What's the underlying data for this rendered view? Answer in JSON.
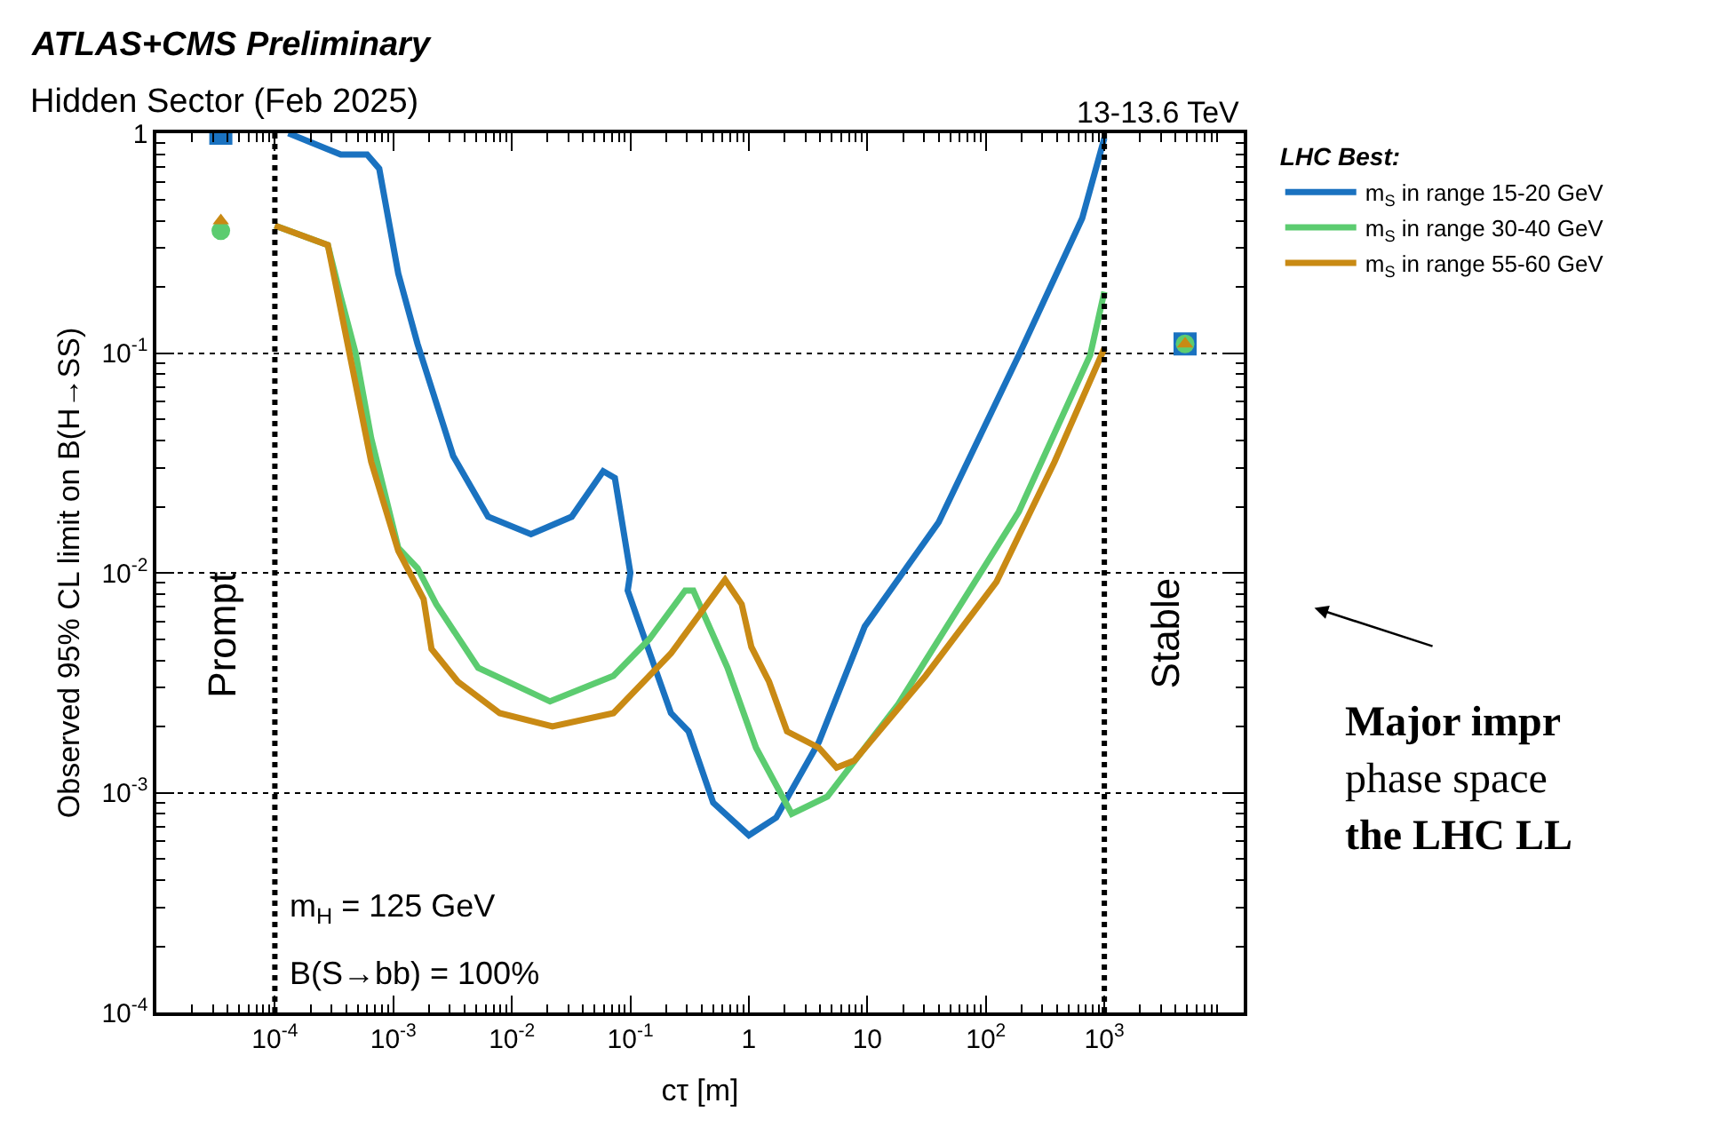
{
  "chart_data": {
    "type": "line",
    "title": "ATLAS+CMS Preliminary",
    "subtitle": "Hidden Sector (Feb 2025)",
    "xlabel": "cτ [m]",
    "ylabel": "Observed 95% CL limit on B(H→SS)",
    "legend_title": "LHC Best:",
    "legend": "right",
    "log": "xy",
    "grid": "y",
    "xlim": [
      1e-05,
      15000
    ],
    "ylim": [
      0.0001,
      1
    ],
    "xticks": [
      {
        "value": 0.0001,
        "label": "10$^{-4}$"
      },
      {
        "value": 0.001,
        "label": "10$^{-3}$"
      },
      {
        "value": 0.01,
        "label": "10$^{-2}$"
      },
      {
        "value": 0.1,
        "label": "10$^{-1}$"
      },
      1,
      10,
      {
        "value": 100,
        "label": "10$^{2}$"
      },
      {
        "value": 1000,
        "label": "10$^{3}$"
      }
    ],
    "yticks": [
      {
        "value": 0.0001,
        "label": "10$^{-4}$"
      },
      {
        "value": 0.001,
        "label": "10$^{-3}$"
      },
      {
        "value": 0.01,
        "label": "10$^{-2}$"
      },
      {
        "value": 0.1,
        "label": "10$^{-1}$"
      },
      1
    ],
    "ref_lines": [
      {
        "axis": "x",
        "value": 0.0001,
        "label": "Prompt",
        "line_style": "dotted",
        "color": "#000000"
      },
      {
        "axis": "x",
        "value": 1000,
        "label": "Stable",
        "line_style": "dotted",
        "color": "#000000"
      }
    ],
    "annotations": [
      "13-13.6 TeV",
      "m$_{H}$ = 125 GeV",
      "B(S→bb) = 100%",
      "Major impr",
      "phase space",
      "the LHC LL"
    ],
    "series": [
      {
        "name": "m$_{S}$ in range 15-20 GeV",
        "color": "#1a72c0",
        "x": [
          0.00013,
          0.00036,
          0.0006,
          0.00076,
          0.0011,
          0.0016,
          0.0032,
          0.0063,
          0.0145,
          0.032,
          0.059,
          0.074,
          0.1,
          0.095,
          0.22,
          0.31,
          0.5,
          1.0,
          1.7,
          3.9,
          9.5,
          40,
          190,
          650,
          1000
        ],
        "values": [
          1.0,
          0.8,
          0.8,
          0.69,
          0.23,
          0.11,
          0.034,
          0.018,
          0.015,
          0.018,
          0.029,
          0.027,
          0.01,
          0.0083,
          0.0023,
          0.0019,
          0.0009,
          0.00064,
          0.00077,
          0.0017,
          0.0057,
          0.017,
          0.098,
          0.41,
          0.95
        ]
      },
      {
        "name": "m$_{S}$ in range 30-40 GeV",
        "color": "#5ccc70",
        "x": [
          0.0001,
          0.00028,
          0.00036,
          0.00048,
          0.00065,
          0.0011,
          0.0016,
          0.0023,
          0.0052,
          0.021,
          0.072,
          0.145,
          0.29,
          0.34,
          0.66,
          1.15,
          2.3,
          4.6,
          18,
          190,
          760,
          1000
        ],
        "values": [
          0.38,
          0.31,
          0.18,
          0.1,
          0.041,
          0.013,
          0.0105,
          0.0072,
          0.0037,
          0.0026,
          0.0034,
          0.005,
          0.0083,
          0.0083,
          0.0037,
          0.0016,
          0.0008,
          0.00096,
          0.0025,
          0.019,
          0.098,
          0.19
        ]
      },
      {
        "name": "m$_{S}$ in range 55-60 GeV",
        "color": "#c98a14",
        "x": [
          0.0001,
          0.00028,
          0.00065,
          0.0011,
          0.0018,
          0.0021,
          0.0035,
          0.0079,
          0.022,
          0.072,
          0.22,
          0.63,
          0.87,
          1.05,
          1.48,
          2.1,
          3.9,
          5.5,
          7.8,
          31,
          123,
          380,
          1000
        ],
        "values": [
          0.38,
          0.31,
          0.032,
          0.0126,
          0.0076,
          0.0045,
          0.0032,
          0.0023,
          0.002,
          0.0023,
          0.0043,
          0.0093,
          0.0072,
          0.0046,
          0.0032,
          0.0019,
          0.0016,
          0.0013,
          0.0014,
          0.0034,
          0.0091,
          0.032,
          0.105
        ]
      },
      {
        "type": "scatter",
        "color": "#1a72c0",
        "marker": "square",
        "x": [
          3.5e-05,
          4800
        ],
        "values": [
          1.0,
          0.11
        ]
      },
      {
        "type": "scatter",
        "color": "#5ccc70",
        "marker": "circle",
        "x": [
          3.5e-05,
          4800
        ],
        "values": [
          0.36,
          0.11
        ]
      },
      {
        "type": "scatter",
        "color": "#c98a14",
        "marker": "triangle",
        "x": [
          3.5e-05,
          4800
        ],
        "values": [
          0.4,
          0.11
        ]
      }
    ]
  }
}
